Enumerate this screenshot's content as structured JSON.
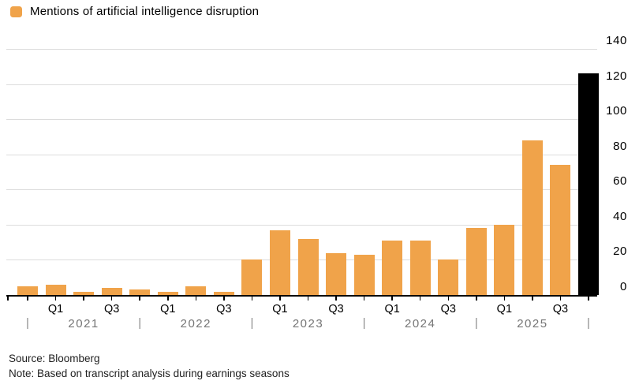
{
  "legend": {
    "label": "Mentions of artificial intelligence disruption",
    "swatch_color": "#f0a34a"
  },
  "chart_data": {
    "type": "bar",
    "title": "Mentions of artificial intelligence disruption",
    "categories": [
      "Q4 2020",
      "Q1 2021",
      "Q2 2021",
      "Q3 2021",
      "Q4 2021",
      "Q1 2022",
      "Q2 2022",
      "Q3 2022",
      "Q4 2022",
      "Q1 2023",
      "Q2 2023",
      "Q3 2023",
      "Q4 2023",
      "Q1 2024",
      "Q2 2024",
      "Q3 2024",
      "Q4 2024",
      "Q1 2025",
      "Q2 2025",
      "Q3 2025",
      "Q4 2025"
    ],
    "values": [
      5,
      6,
      2,
      4,
      3,
      2,
      5,
      2,
      20,
      37,
      32,
      24,
      23,
      31,
      31,
      20,
      38,
      40,
      88,
      74,
      126
    ],
    "bar_color_default": "#f0a34a",
    "highlight": {
      "index": 20,
      "color": "#000000"
    },
    "ylim": [
      0,
      140
    ],
    "yticks": [
      0,
      20,
      40,
      60,
      80,
      100,
      120,
      140
    ],
    "grid": true,
    "legend_position": "top-left",
    "x_axis": {
      "quarter_labels_shown": [
        "Q1",
        "Q3"
      ],
      "years": [
        "2021",
        "2022",
        "2023",
        "2024",
        "2025"
      ],
      "year_separator": "|"
    }
  },
  "footer": {
    "source": "Source: Bloomberg",
    "note": "Note: Based on transcript analysis during earnings seasons"
  },
  "colors": {
    "gridline": "#dcdcdc",
    "axis": "#000000",
    "year_text": "#757575",
    "label_text": "#000000"
  }
}
